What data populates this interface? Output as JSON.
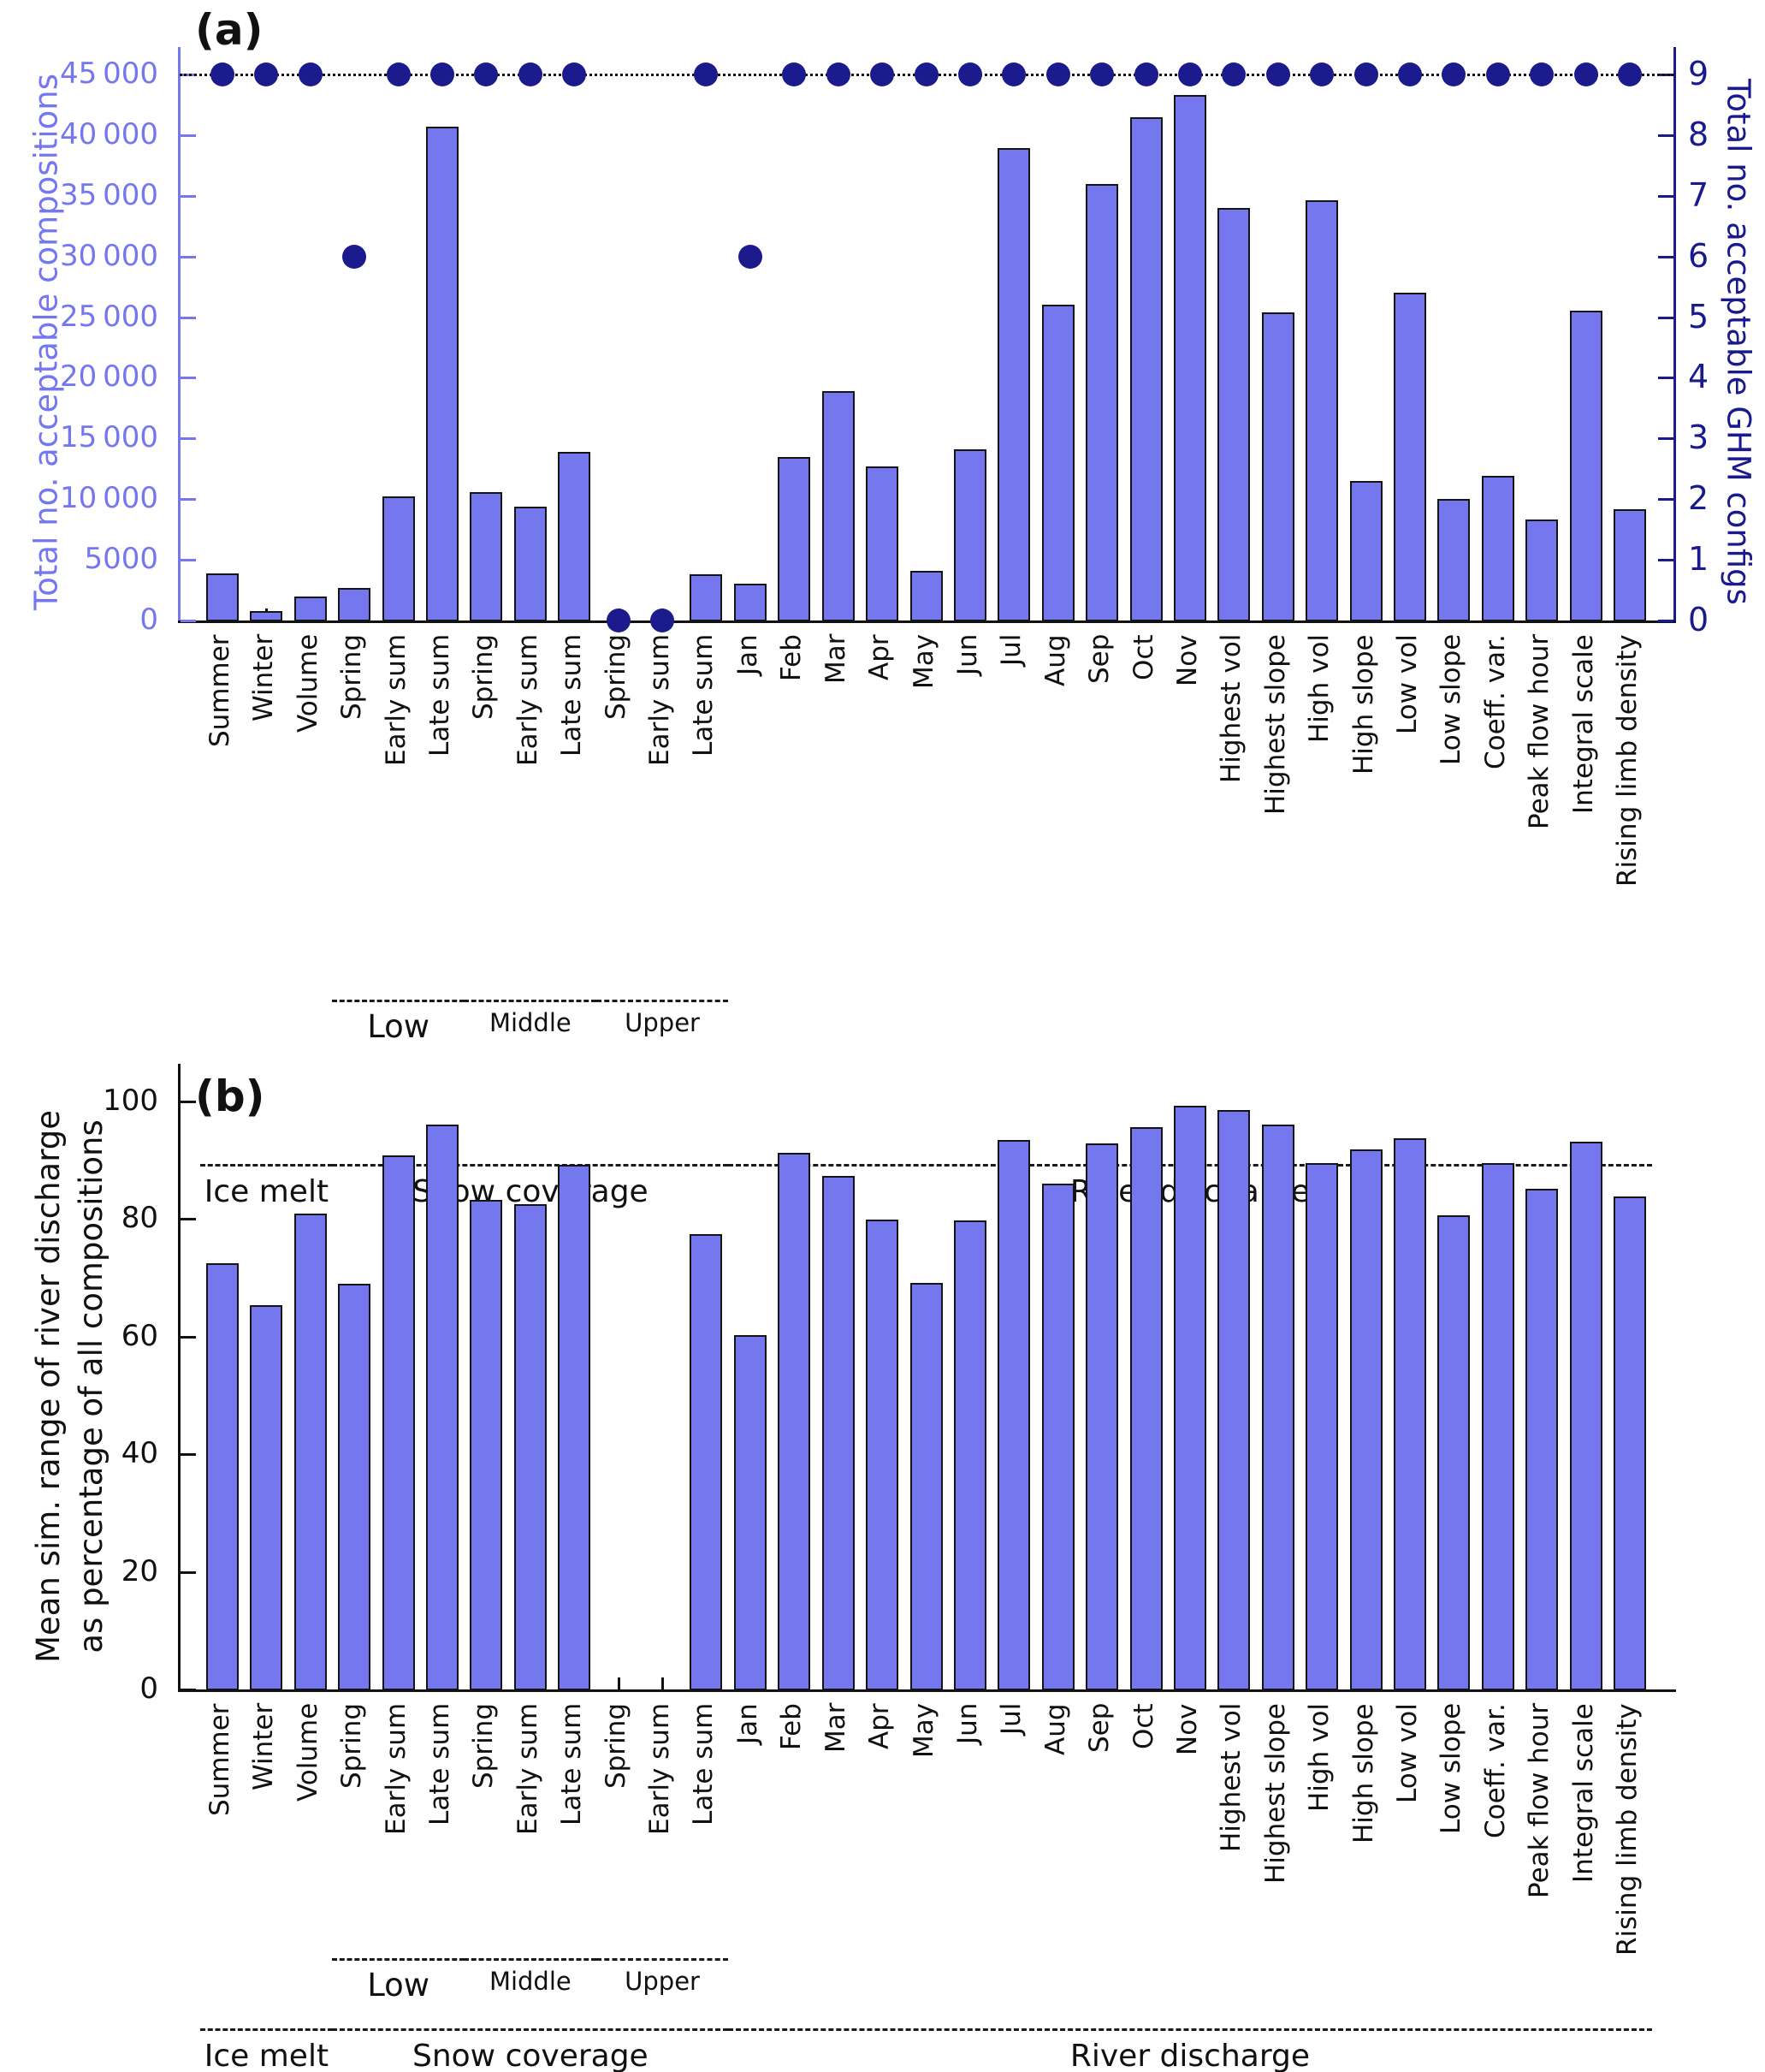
{
  "figure": {
    "background": "#ffffff",
    "bar_fill": "#7577ee",
    "bar_border": "#141414",
    "dot_color": "#1b1b8d",
    "left_axis_color_a": "#7577ee",
    "right_axis_color_a": "#1a1a8f",
    "black_axis_color": "#111111"
  },
  "chart_data": [
    {
      "type": "bar",
      "title": "(a)",
      "ylabel": "Total no. acceptable compositions",
      "ylabel_right": "Total no. acceptable GHM configs",
      "ylim_left": [
        0,
        45000
      ],
      "ylim_right": [
        0,
        9
      ],
      "grid": false,
      "reference_line": {
        "value": 45000,
        "style": "dotted",
        "axis": "left"
      },
      "categories": [
        "Summer",
        "Winter",
        "Volume",
        "Spring",
        "Early sum",
        "Late sum",
        "Spring",
        "Early sum",
        "Late sum",
        "Spring",
        "Early sum",
        "Late sum",
        "Jan",
        "Feb",
        "Mar",
        "Apr",
        "May",
        "Jun",
        "Jul",
        "Aug",
        "Sep",
        "Oct",
        "Nov",
        "Highest vol",
        "Highest slope",
        "High vol",
        "High slope",
        "Low vol",
        "Low slope",
        "Coeff. var.",
        "Peak flow hour",
        "Integral scale",
        "Rising limb density"
      ],
      "yticks_left": {
        "values": [
          0,
          5000,
          10000,
          15000,
          20000,
          25000,
          30000,
          35000,
          40000,
          45000
        ],
        "labels": [
          "0",
          "5000",
          "10 000",
          "15 000",
          "20 000",
          "25 000",
          "30 000",
          "35 000",
          "40 000",
          "45 000"
        ]
      },
      "yticks_right": {
        "values": [
          0,
          1,
          2,
          3,
          4,
          5,
          6,
          7,
          8,
          9
        ],
        "labels": [
          "0",
          "1",
          "2",
          "3",
          "4",
          "5",
          "6",
          "7",
          "8",
          "9"
        ]
      },
      "series": [
        {
          "name": "Total no. acceptable compositions",
          "type": "bar",
          "axis": "left",
          "values": [
            3900,
            800,
            2000,
            2650,
            10200,
            40700,
            10600,
            9400,
            13900,
            0,
            0,
            3800,
            3000,
            13500,
            18900,
            12700,
            4100,
            14100,
            38900,
            26000,
            36000,
            41500,
            43300,
            34000,
            25400,
            34600,
            11500,
            27000,
            10000,
            11900,
            8300,
            25500,
            9200
          ]
        },
        {
          "name": "Total no. acceptable GHM configs",
          "type": "scatter",
          "axis": "right",
          "values": [
            9,
            9,
            9,
            6,
            9,
            9,
            9,
            9,
            9,
            0,
            0,
            9,
            6,
            9,
            9,
            9,
            9,
            9,
            9,
            9,
            9,
            9,
            9,
            9,
            9,
            9,
            9,
            9,
            9,
            9,
            9,
            9,
            9
          ]
        }
      ],
      "subgroups": [
        {
          "label": "Low",
          "from": 3,
          "to": 5
        },
        {
          "label": "Middle",
          "from": 6,
          "to": 8
        },
        {
          "label": "Upper",
          "from": 9,
          "to": 11
        }
      ],
      "groups": [
        {
          "label": "Ice melt",
          "from": 0,
          "to": 2
        },
        {
          "label": "Snow coverage",
          "from": 3,
          "to": 11
        },
        {
          "label": "River discharge",
          "from": 12,
          "to": 32
        }
      ]
    },
    {
      "type": "bar",
      "title": "(b)",
      "ylabel": "Mean sim. range of river discharge\nas percentage of all compositions",
      "ylim_left": [
        0,
        100
      ],
      "grid": false,
      "categories": [
        "Summer",
        "Winter",
        "Volume",
        "Spring",
        "Early sum",
        "Late sum",
        "Spring",
        "Early sum",
        "Late sum",
        "Spring",
        "Early sum",
        "Late sum",
        "Jan",
        "Feb",
        "Mar",
        "Apr",
        "May",
        "Jun",
        "Jul",
        "Aug",
        "Sep",
        "Oct",
        "Nov",
        "Highest vol",
        "Highest slope",
        "High vol",
        "High slope",
        "Low vol",
        "Low slope",
        "Coeff. var.",
        "Peak flow hour",
        "Integral scale",
        "Rising limb density"
      ],
      "yticks_left": {
        "values": [
          0,
          20,
          40,
          60,
          80,
          100
        ],
        "labels": [
          "0",
          "20",
          "40",
          "60",
          "80",
          "100"
        ]
      },
      "series": [
        {
          "name": "Mean sim. range of river discharge as percentage of all compositions",
          "type": "bar",
          "axis": "left",
          "values": [
            72.5,
            65.3,
            81,
            69,
            90.9,
            96.1,
            83.2,
            82.6,
            89.2,
            0,
            0,
            77.5,
            60.2,
            91.2,
            87.4,
            79.9,
            69.1,
            79.7,
            93.5,
            86,
            92.9,
            95.7,
            99.2,
            98.6,
            96,
            89.5,
            91.8,
            93.7,
            80.7,
            89.5,
            85.1,
            93.2,
            83.8
          ]
        }
      ],
      "subgroups": [
        {
          "label": "Low",
          "from": 3,
          "to": 5
        },
        {
          "label": "Middle",
          "from": 6,
          "to": 8
        },
        {
          "label": "Upper",
          "from": 9,
          "to": 11
        }
      ],
      "groups": [
        {
          "label": "Ice melt",
          "from": 0,
          "to": 2
        },
        {
          "label": "Snow coverage",
          "from": 3,
          "to": 11
        },
        {
          "label": "River discharge",
          "from": 12,
          "to": 32
        }
      ]
    }
  ]
}
